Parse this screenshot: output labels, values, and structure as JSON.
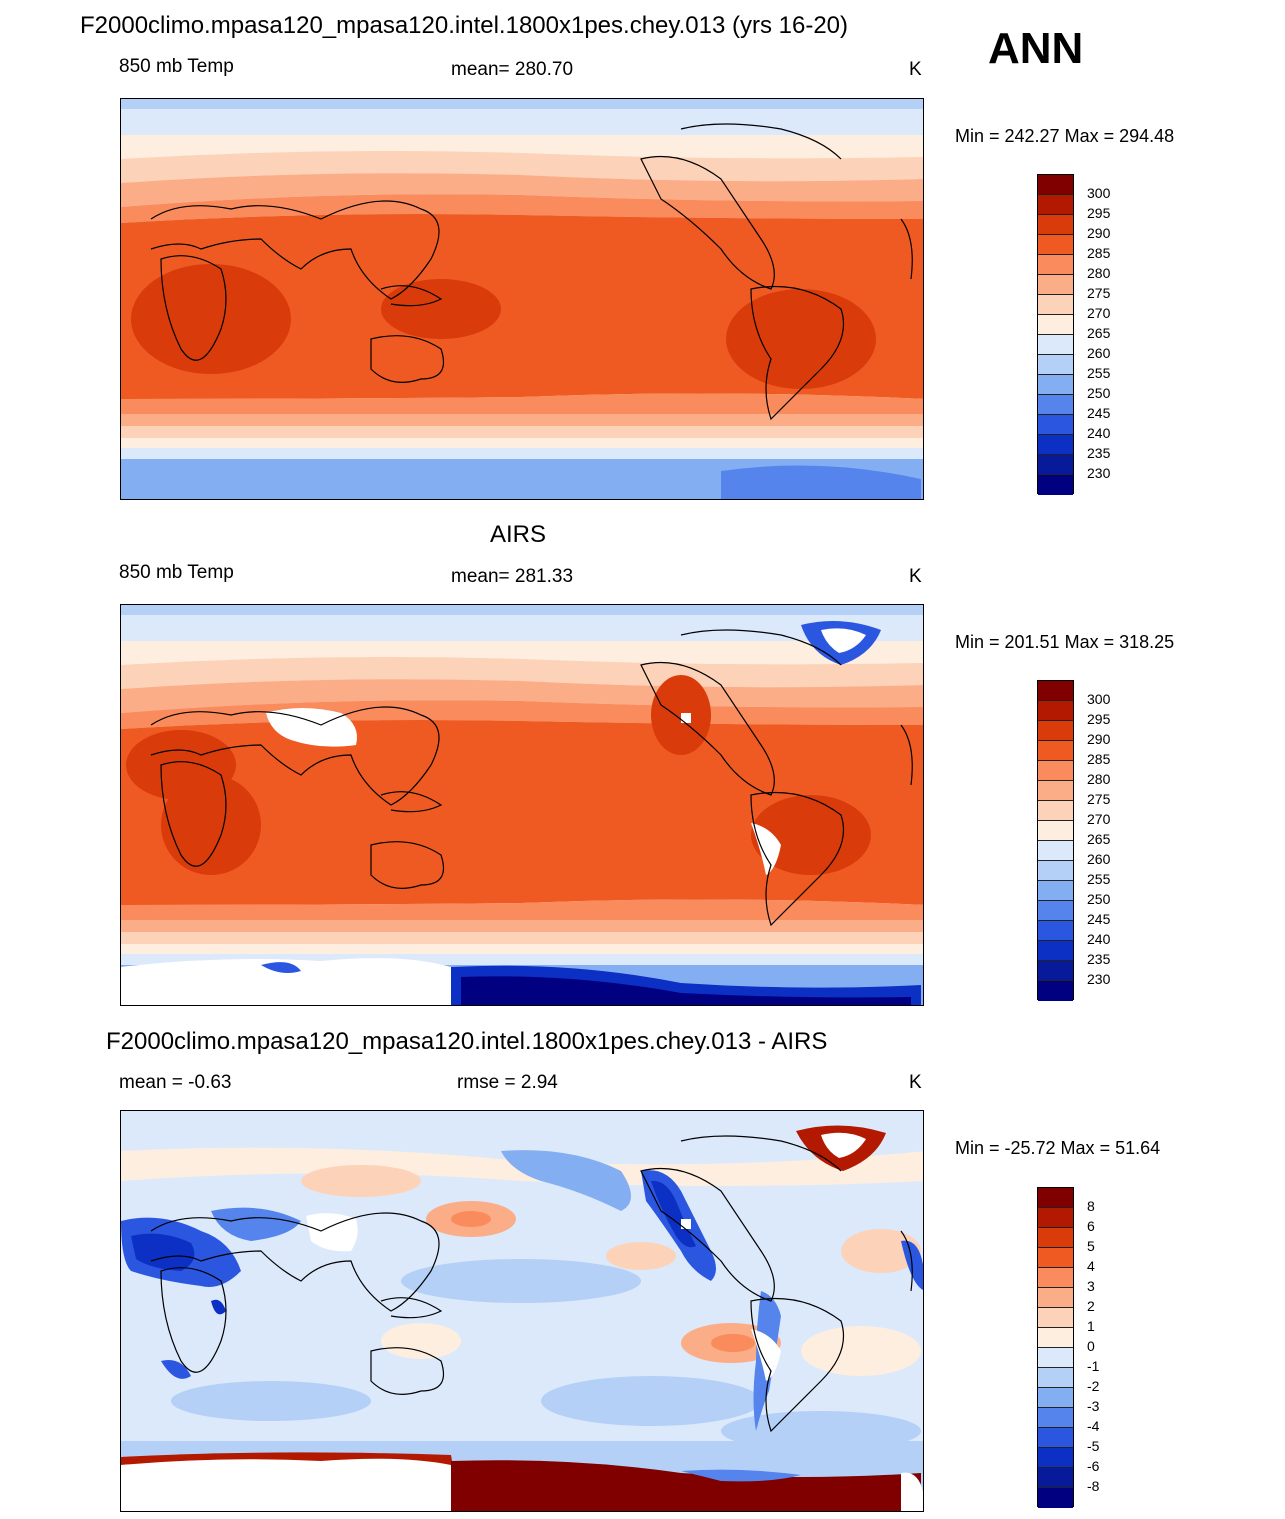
{
  "header": {
    "title": "F2000climo.mpasa120_mpasa120.intel.1800x1pes.chey.013 (yrs 16-20)",
    "season": "ANN"
  },
  "panels": [
    {
      "id": "model",
      "title": "",
      "left_label": "850 mb Temp",
      "center_label": "mean= 280.70",
      "right_label": "K",
      "minmax": "Min = 242.27 Max = 294.48"
    },
    {
      "id": "obs",
      "title": "AIRS",
      "left_label": "850 mb Temp",
      "center_label": "mean= 281.33",
      "right_label": "K",
      "minmax": "Min = 201.51 Max = 318.25"
    },
    {
      "id": "diff",
      "title": "F2000climo.mpasa120_mpasa120.intel.1800x1pes.chey.013 - AIRS",
      "left_label": "mean =  -0.63",
      "center_label": "rmse =   2.94",
      "right_label": "K",
      "minmax": "Min = -25.72 Max =  51.64"
    }
  ],
  "colorbars": {
    "temp": {
      "labels": [
        "300",
        "295",
        "290",
        "285",
        "280",
        "275",
        "270",
        "265",
        "260",
        "255",
        "250",
        "245",
        "240",
        "235",
        "230"
      ],
      "colors": [
        "#800000",
        "#b31900",
        "#d93b0a",
        "#ef5a22",
        "#fa8b5c",
        "#fbad88",
        "#fcd2b8",
        "#fdeee0",
        "#dce9fb",
        "#b4d0f7",
        "#84aef2",
        "#5585ec",
        "#2b57e0",
        "#0c30c4",
        "#061a9a",
        "#000080"
      ]
    },
    "diff": {
      "labels": [
        "8",
        "6",
        "5",
        "4",
        "3",
        "2",
        "1",
        "0",
        "-1",
        "-2",
        "-3",
        "-4",
        "-5",
        "-6",
        "-8"
      ],
      "colors": [
        "#800000",
        "#b31900",
        "#d93b0a",
        "#ef5a22",
        "#fa8b5c",
        "#fbad88",
        "#fcd2b8",
        "#fdeee0",
        "#dce9fb",
        "#b4d0f7",
        "#84aef2",
        "#5585ec",
        "#2b57e0",
        "#0c30c4",
        "#061a9a",
        "#000080"
      ]
    }
  }
}
